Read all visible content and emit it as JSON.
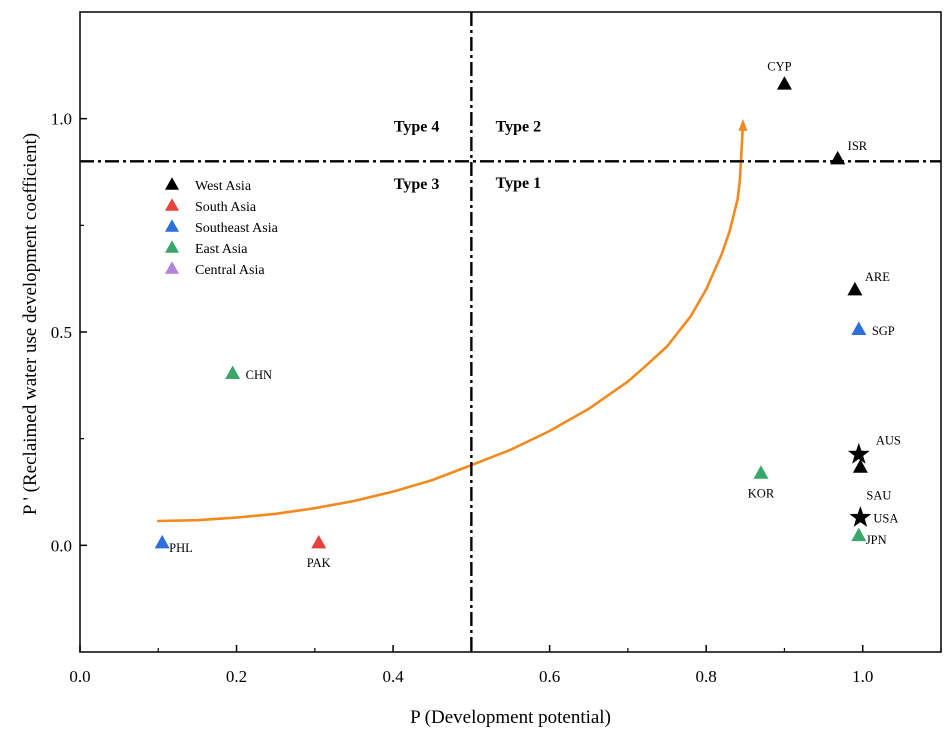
{
  "chart_data": {
    "type": "scatter",
    "xlabel": "P (Development potential)",
    "ylabel": "P ' (Reclaimed water use development coefficient)",
    "xlim": [
      0.0,
      1.1
    ],
    "ylim": [
      -0.25,
      1.25
    ],
    "x_ticks": [
      {
        "value": 0.0,
        "label": "0.0"
      },
      {
        "value": 0.2,
        "label": "0.2"
      },
      {
        "value": 0.4,
        "label": "0.4"
      },
      {
        "value": 0.6,
        "label": "0.6"
      },
      {
        "value": 0.8,
        "label": "0.8"
      },
      {
        "value": 1.0,
        "label": "1.0"
      }
    ],
    "y_ticks": [
      {
        "value": 0.0,
        "label": "0.0"
      },
      {
        "value": 0.5,
        "label": "0.5"
      },
      {
        "value": 1.0,
        "label": "1.0"
      }
    ],
    "threshold_x": 0.5,
    "threshold_y": 0.9,
    "quadrant_labels": [
      {
        "text": "Type 4",
        "x": 0.43,
        "y": 0.97
      },
      {
        "text": "Type 2",
        "x": 0.56,
        "y": 0.97
      },
      {
        "text": "Type 3",
        "x": 0.43,
        "y": 0.835
      },
      {
        "text": "Type 1",
        "x": 0.56,
        "y": 0.838
      }
    ],
    "legend": [
      {
        "label": "West Asia",
        "color": "#000000"
      },
      {
        "label": "South Asia",
        "color": "#e8413c"
      },
      {
        "label": "Southeast Asia",
        "color": "#2a6fdb"
      },
      {
        "label": "East Asia",
        "color": "#3aa66a"
      },
      {
        "label": "Central Asia",
        "color": "#b282dc"
      }
    ],
    "points": [
      {
        "label": "CYP",
        "x": 0.9,
        "y": 1.08,
        "marker": "triangle",
        "color": "#000000",
        "label_pos": "above"
      },
      {
        "label": "ISR",
        "x": 0.968,
        "y": 0.905,
        "marker": "triangle",
        "color": "#000000",
        "label_pos": "upper-right"
      },
      {
        "label": "ARE",
        "x": 0.99,
        "y": 0.598,
        "marker": "triangle",
        "color": "#000000",
        "label_pos": "upper-right"
      },
      {
        "label": "SGP",
        "x": 0.995,
        "y": 0.505,
        "marker": "triangle",
        "color": "#2a6fdb",
        "label_pos": "right"
      },
      {
        "label": "CHN",
        "x": 0.195,
        "y": 0.402,
        "marker": "triangle",
        "color": "#3aa66a",
        "label_pos": "right"
      },
      {
        "label": "AUS",
        "x": 0.995,
        "y": 0.213,
        "marker": "star",
        "color": "#000000",
        "label_pos": "upper-right"
      },
      {
        "label": "SAU",
        "x": 0.997,
        "y": 0.182,
        "marker": "triangle",
        "color": "#000000",
        "label_pos": "lower-right"
      },
      {
        "label": "KOR",
        "x": 0.87,
        "y": 0.168,
        "marker": "triangle",
        "color": "#3aa66a",
        "label_pos": "below"
      },
      {
        "label": "USA",
        "x": 0.997,
        "y": 0.065,
        "marker": "star",
        "color": "#000000",
        "label_pos": "right"
      },
      {
        "label": "JPN",
        "x": 0.995,
        "y": 0.022,
        "marker": "triangle",
        "color": "#3aa66a",
        "label_pos": "right-low"
      },
      {
        "label": "PHL",
        "x": 0.105,
        "y": 0.005,
        "marker": "triangle",
        "color": "#2a6fdb",
        "label_pos": "lower-right"
      },
      {
        "label": "PAK",
        "x": 0.305,
        "y": 0.005,
        "marker": "triangle",
        "color": "#e8413c",
        "label_pos": "below"
      }
    ],
    "curve": {
      "color": "#f28a1e",
      "x": [
        0.1,
        0.15,
        0.2,
        0.25,
        0.3,
        0.35,
        0.4,
        0.45,
        0.5,
        0.55,
        0.6,
        0.65,
        0.7,
        0.72,
        0.75,
        0.78,
        0.8,
        0.82,
        0.83,
        0.84,
        0.843,
        0.845,
        0.847
      ],
      "y": [
        0.057,
        0.059,
        0.065,
        0.074,
        0.087,
        0.104,
        0.126,
        0.153,
        0.188,
        0.224,
        0.268,
        0.32,
        0.384,
        0.416,
        0.466,
        0.536,
        0.6,
        0.683,
        0.737,
        0.81,
        0.855,
        0.92,
        0.99
      ]
    }
  }
}
